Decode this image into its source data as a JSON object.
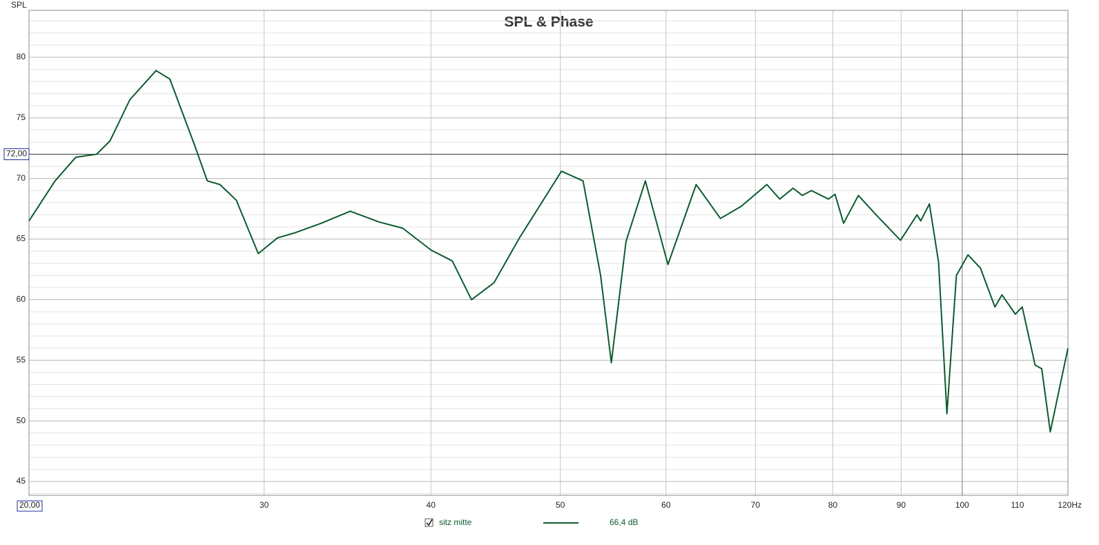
{
  "chart_data": {
    "type": "line",
    "title": "SPL & Phase",
    "y_label": "SPL",
    "x_scale": "log",
    "grid": true,
    "minor_grid_step": 1,
    "xlim": [
      20,
      120
    ],
    "ylim": [
      43.86,
      83.87
    ],
    "xticks": [
      30,
      40,
      50,
      60,
      70,
      80,
      90,
      100,
      110,
      {
        "value": 120,
        "label": "120Hz"
      }
    ],
    "yticks": [
      45,
      50,
      55,
      60,
      65,
      70,
      75,
      80
    ],
    "cursor": {
      "x": {
        "value": 20,
        "label": "20,00"
      },
      "y": {
        "value": 72,
        "label": "72,00"
      }
    },
    "x": [
      20,
      20.92,
      21.68,
      22.47,
      23.0,
      23.8,
      24.9,
      25.5,
      26.6,
      27.2,
      27.8,
      28.6,
      29.7,
      30.7,
      31.6,
      33.1,
      34.8,
      36.6,
      38.1,
      40.0,
      41.5,
      42.9,
      44.6,
      46.6,
      48.8,
      50.1,
      52.0,
      53.6,
      54.6,
      56.0,
      57.9,
      60.2,
      63.2,
      65.9,
      68.3,
      71.4,
      73.0,
      74.7,
      75.9,
      77.1,
      79.4,
      80.3,
      81.5,
      83.6,
      86.2,
      89.9,
      92.5,
      93.1,
      94.5,
      96.0,
      97.4,
      99.0,
      101.0,
      103.2,
      105.8,
      107.1,
      109.6,
      110.9,
      113.4,
      114.7,
      116.4,
      120
    ],
    "series": [
      {
        "name": "sitz mitte",
        "color": "#0b5a2e",
        "legend_value": "66,4 dB",
        "values": [
          66.5,
          69.8,
          71.75,
          72.0,
          73.1,
          76.5,
          78.9,
          78.2,
          72.8,
          69.8,
          69.5,
          68.2,
          63.8,
          65.1,
          65.5,
          66.3,
          67.3,
          66.4,
          65.9,
          64.1,
          63.2,
          60.0,
          61.4,
          65.1,
          68.6,
          70.6,
          69.8,
          62.0,
          54.8,
          64.8,
          69.8,
          62.9,
          69.5,
          66.7,
          67.7,
          69.5,
          68.3,
          69.2,
          68.6,
          69.0,
          68.3,
          68.7,
          66.3,
          68.6,
          67.0,
          64.9,
          67.0,
          66.5,
          67.9,
          63.1,
          50.6,
          62.0,
          63.7,
          62.6,
          59.4,
          60.4,
          58.8,
          59.4,
          54.6,
          54.3,
          49.1,
          56.0
        ]
      }
    ]
  }
}
